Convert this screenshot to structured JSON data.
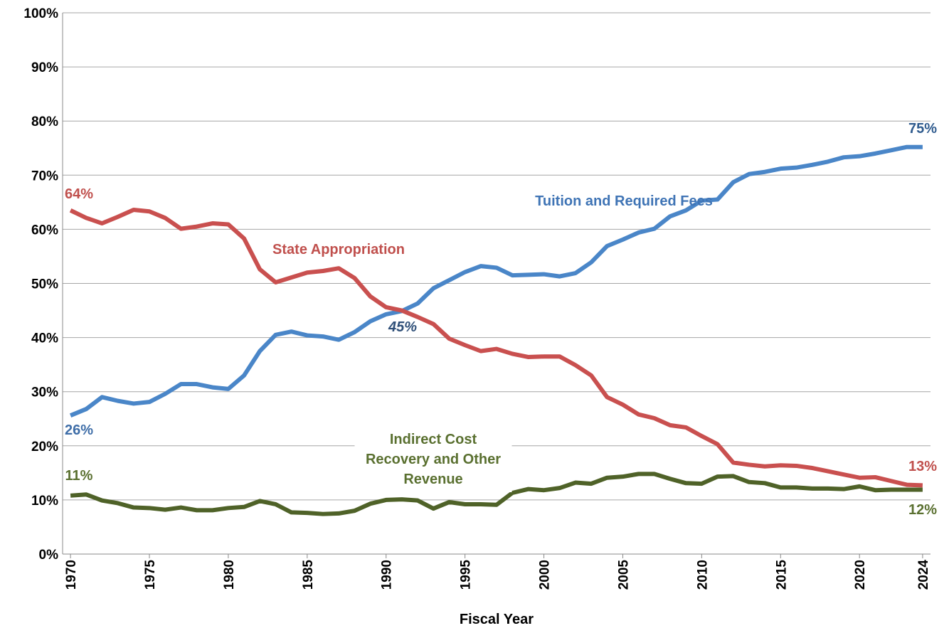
{
  "chart_data": {
    "type": "line",
    "xlabel": "Fiscal Year",
    "x": [
      1970,
      1971,
      1972,
      1973,
      1974,
      1975,
      1976,
      1977,
      1978,
      1979,
      1980,
      1981,
      1982,
      1983,
      1984,
      1985,
      1986,
      1987,
      1988,
      1989,
      1990,
      1991,
      1992,
      1993,
      1994,
      1995,
      1996,
      1997,
      1998,
      1999,
      2000,
      2001,
      2002,
      2003,
      2004,
      2005,
      2006,
      2007,
      2008,
      2009,
      2010,
      2011,
      2012,
      2013,
      2014,
      2015,
      2016,
      2017,
      2018,
      2019,
      2020,
      2021,
      2022,
      2023,
      2024
    ],
    "series": [
      {
        "name": "Tuition and Required Fees",
        "color": "#4a86c8",
        "label_color": "#3f74b5",
        "values": [
          25.6,
          26.8,
          29.0,
          28.3,
          27.8,
          28.1,
          29.6,
          31.4,
          31.4,
          30.8,
          30.5,
          33.0,
          37.5,
          40.5,
          41.1,
          40.4,
          40.2,
          39.6,
          41.0,
          43.0,
          44.3,
          44.9,
          46.3,
          49.1,
          50.6,
          52.1,
          53.2,
          52.9,
          51.5,
          51.6,
          51.7,
          51.3,
          51.9,
          53.9,
          56.9,
          58.1,
          59.4,
          60.1,
          62.4,
          63.5,
          65.3,
          65.5,
          68.7,
          70.2,
          70.6,
          71.2,
          71.4,
          71.9,
          72.5,
          73.3,
          73.5,
          74.0,
          74.6,
          75.2,
          75.2
        ]
      },
      {
        "name": "State Appropriation",
        "color": "#c9504f",
        "label_color": "#c0504d",
        "values": [
          63.5,
          62.1,
          61.1,
          62.3,
          63.6,
          63.3,
          62.1,
          60.1,
          60.5,
          61.1,
          60.9,
          58.3,
          52.6,
          50.2,
          51.1,
          52.0,
          52.3,
          52.8,
          51.0,
          47.6,
          45.6,
          45.0,
          43.8,
          42.5,
          39.8,
          38.6,
          37.5,
          37.9,
          37.0,
          36.4,
          36.5,
          36.5,
          34.9,
          33.0,
          29.0,
          27.6,
          25.8,
          25.1,
          23.8,
          23.4,
          21.8,
          20.3,
          16.9,
          16.5,
          16.2,
          16.4,
          16.3,
          15.9,
          15.3,
          14.7,
          14.1,
          14.2,
          13.5,
          12.8,
          12.7
        ]
      },
      {
        "name": "Indirect Cost Recovery and Other Revenue",
        "color": "#4f6228",
        "label_color": "#5a7030",
        "values": [
          10.8,
          11.0,
          9.9,
          9.4,
          8.6,
          8.5,
          8.2,
          8.6,
          8.1,
          8.1,
          8.5,
          8.7,
          9.8,
          9.2,
          7.7,
          7.6,
          7.4,
          7.5,
          8.0,
          9.3,
          10.0,
          10.1,
          9.9,
          8.4,
          9.6,
          9.2,
          9.2,
          9.1,
          11.3,
          12.0,
          11.8,
          12.2,
          13.2,
          13.0,
          14.1,
          14.3,
          14.8,
          14.8,
          13.9,
          13.1,
          13.0,
          14.3,
          14.4,
          13.3,
          13.1,
          12.3,
          12.3,
          12.1,
          12.1,
          12.0,
          12.5,
          11.8,
          11.9,
          11.9,
          11.9
        ]
      }
    ],
    "annotations": [
      {
        "text": "64%",
        "color": "#c0504d"
      },
      {
        "text": "26%",
        "color": "#3f6ea8"
      },
      {
        "text": "11%",
        "color": "#5a7030"
      },
      {
        "text": "75%",
        "color": "#2f5b8e"
      },
      {
        "text": "13%",
        "color": "#c0504d"
      },
      {
        "text": "12%",
        "color": "#5a7030"
      },
      {
        "text": "45%",
        "color": "#2f4f78",
        "style": "italic"
      }
    ],
    "xlim": [
      1969.5,
      2024.5
    ],
    "xticks": [
      1970,
      1975,
      1980,
      1985,
      1990,
      1995,
      2000,
      2005,
      2010,
      2015,
      2020,
      2024
    ],
    "ylim": [
      0,
      100
    ],
    "yticks": [
      {
        "value": 0,
        "label": "0%"
      },
      {
        "value": 10,
        "label": "10%"
      },
      {
        "value": 20,
        "label": "20%"
      },
      {
        "value": 30,
        "label": "30%"
      },
      {
        "value": 40,
        "label": "40%"
      },
      {
        "value": 50,
        "label": "50%"
      },
      {
        "value": 60,
        "label": "60%"
      },
      {
        "value": 70,
        "label": "70%"
      },
      {
        "value": 80,
        "label": "80%"
      },
      {
        "value": 90,
        "label": "90%"
      },
      {
        "value": 100,
        "label": "100%"
      }
    ],
    "grid": true
  }
}
